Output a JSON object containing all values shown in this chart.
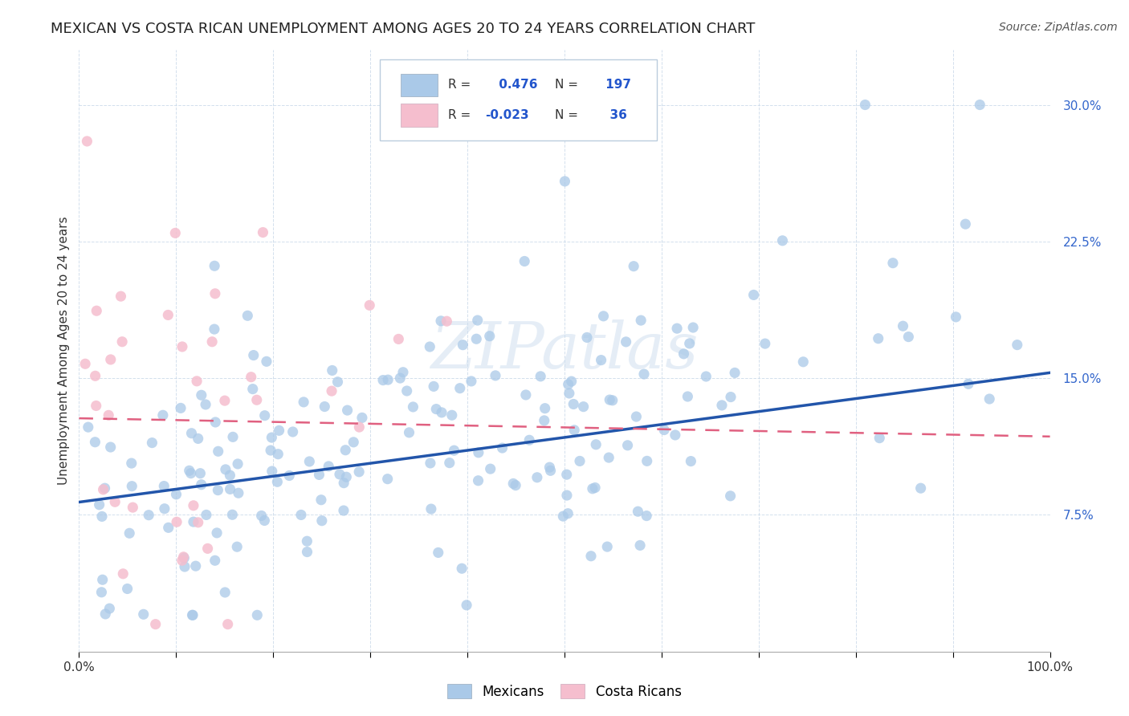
{
  "title": "MEXICAN VS COSTA RICAN UNEMPLOYMENT AMONG AGES 20 TO 24 YEARS CORRELATION CHART",
  "source": "Source: ZipAtlas.com",
  "ylabel": "Unemployment Among Ages 20 to 24 years",
  "xlim": [
    0.0,
    1.0
  ],
  "ylim": [
    0.0,
    0.33
  ],
  "ytick_positions": [
    0.075,
    0.15,
    0.225,
    0.3
  ],
  "yticklabels": [
    "7.5%",
    "15.0%",
    "22.5%",
    "30.0%"
  ],
  "blue_R": 0.476,
  "blue_N": 197,
  "pink_R": -0.023,
  "pink_N": 36,
  "blue_color": "#aac9e8",
  "pink_color": "#f5bece",
  "blue_line_color": "#2255aa",
  "pink_line_color": "#e06080",
  "watermark": "ZIPatlas",
  "legend_label_blue": "Mexicans",
  "legend_label_pink": "Costa Ricans",
  "blue_trend_y_start": 0.082,
  "blue_trend_y_end": 0.153,
  "pink_trend_y_start": 0.128,
  "pink_trend_y_end": 0.118,
  "title_fontsize": 13,
  "source_fontsize": 10,
  "ytick_color": "#3366cc",
  "xtick_color": "#333333"
}
